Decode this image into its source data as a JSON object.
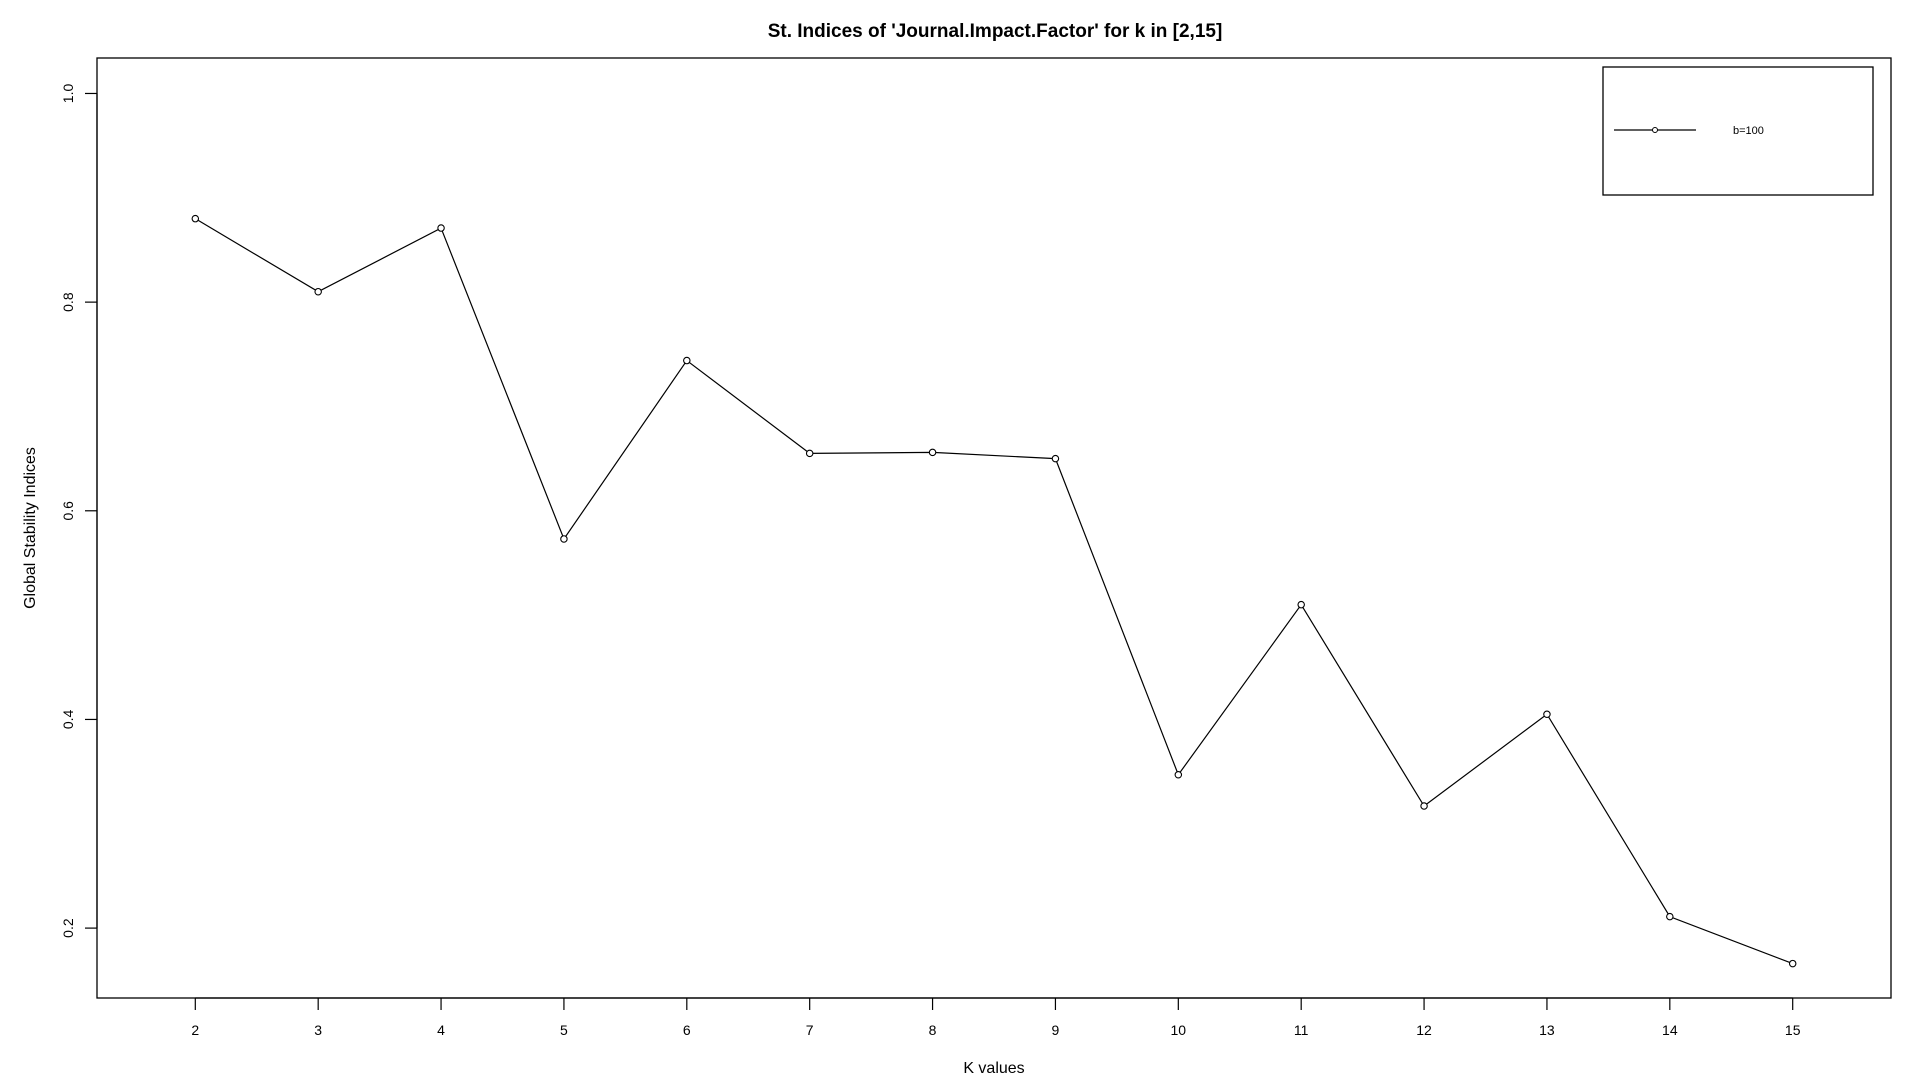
{
  "chart_data": {
    "type": "line",
    "title": "St. Indices of 'Journal.Impact.Factor' for k in [2,15]",
    "xlabel": "K values",
    "ylabel": "Global Stability Indices",
    "x": [
      2,
      3,
      4,
      5,
      6,
      7,
      8,
      9,
      10,
      11,
      12,
      13,
      14,
      15
    ],
    "series": [
      {
        "name": "b=100",
        "values": [
          0.88,
          0.81,
          0.871,
          0.573,
          0.744,
          0.655,
          0.656,
          0.65,
          0.347,
          0.51,
          0.317,
          0.405,
          0.211,
          0.166
        ]
      }
    ],
    "xlim": [
      1.2,
      15.8
    ],
    "ylim": [
      0.133,
      1.034
    ],
    "x_ticks": [
      "2",
      "3",
      "4",
      "5",
      "6",
      "7",
      "8",
      "9",
      "10",
      "11",
      "12",
      "13",
      "14",
      "15"
    ],
    "y_ticks": [
      "0.2",
      "0.4",
      "0.6",
      "0.8",
      "1.0"
    ],
    "grid": false,
    "legend_position": "top-right",
    "colors": {
      "line": "#000000",
      "background": "#ffffff"
    }
  }
}
